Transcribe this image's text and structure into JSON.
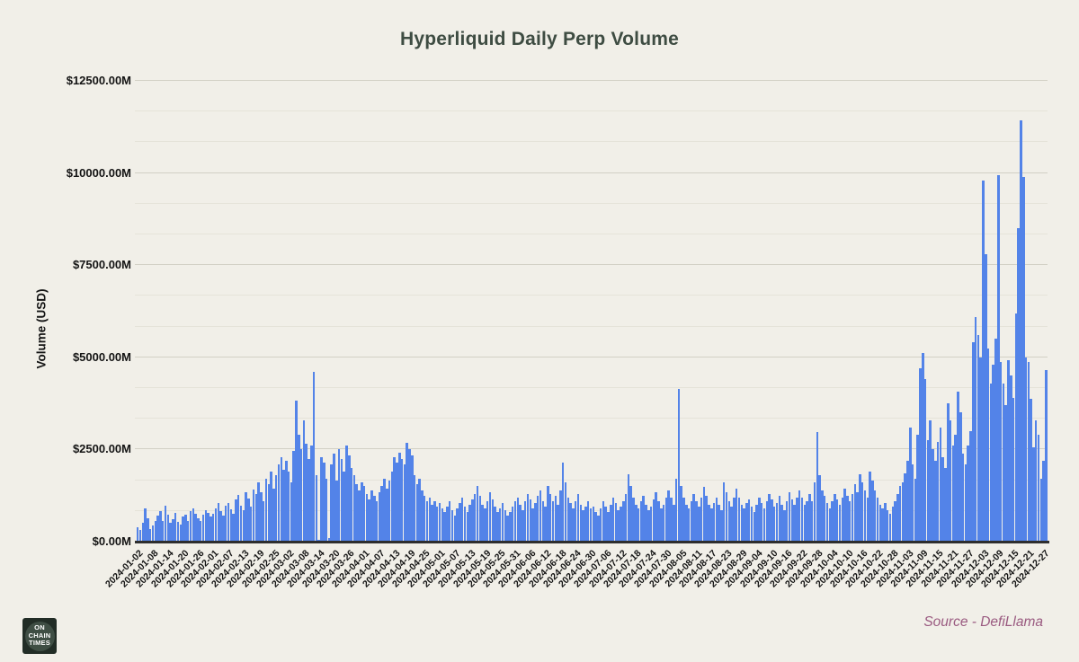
{
  "title": "Hyperliquid Daily Perp Volume",
  "y_axis": {
    "label": "Volume (USD)",
    "ticks": [
      {
        "value": 0,
        "label": "$0.00M"
      },
      {
        "value": 2500,
        "label": "$2500.00M"
      },
      {
        "value": 5000,
        "label": "$5000.00M"
      },
      {
        "value": 7500,
        "label": "$7500.00M"
      },
      {
        "value": 10000,
        "label": "$10000.00M"
      },
      {
        "value": 12500,
        "label": "$12500.00M"
      }
    ],
    "minor_divisions_per_major": 3
  },
  "x_axis": {
    "tick_every_n_bars": 6,
    "tick_labels": [
      "2024-01-02",
      "2024-01-08",
      "2024-01-14",
      "2024-01-20",
      "2024-01-26",
      "2024-02-01",
      "2024-02-07",
      "2024-02-13",
      "2024-02-19",
      "2024-02-25",
      "2024-03-02",
      "2024-03-08",
      "2024-03-14",
      "2024-03-20",
      "2024-03-26",
      "2024-04-01",
      "2024-04-07",
      "2024-04-13",
      "2024-04-19",
      "2024-04-25",
      "2024-05-01",
      "2024-05-07",
      "2024-05-13",
      "2024-05-19",
      "2024-05-25",
      "2024-05-31",
      "2024-06-06",
      "2024-06-12",
      "2024-06-18",
      "2024-06-24",
      "2024-06-30",
      "2024-07-06",
      "2024-07-12",
      "2024-07-18",
      "2024-07-24",
      "2024-07-30",
      "2024-08-05",
      "2024-08-11",
      "2024-08-17",
      "2024-08-23",
      "2024-08-29",
      "2024-09-04",
      "2024-09-10",
      "2024-09-16",
      "2024-09-22",
      "2024-09-28",
      "2024-10-04",
      "2024-10-10",
      "2024-10-16",
      "2024-10-22",
      "2024-10-28",
      "2024-11-03",
      "2024-11-09",
      "2024-11-15",
      "2024-11-21",
      "2024-11-27",
      "2024-12-03",
      "2024-12-09",
      "2024-12-15",
      "2024-12-21",
      "2024-12-27"
    ]
  },
  "source": "Source - DefiLlama",
  "logo": {
    "lines": [
      "ON",
      "CHAIN",
      "TIMES"
    ]
  },
  "colors": {
    "background": "#f1efe8",
    "bar": "#5383e8",
    "title_text": "#3e4c42",
    "axis_text": "#141414",
    "grid_major": "#d2d0c5",
    "grid_minor": "#e5e3d9",
    "baseline": "#2e2e2e",
    "source_text": "#9a5a80",
    "logo_bg": "#222d26",
    "logo_circle": "#3f4e44",
    "logo_text": "#ffffff"
  },
  "chart_data": {
    "type": "bar",
    "title": "Hyperliquid Daily Perp Volume",
    "xlabel": "",
    "ylabel": "Volume (USD)",
    "unit": "USD millions",
    "ylim": [
      0,
      12500
    ],
    "grid": true,
    "start_date": "2024-01-02",
    "end_date": "2024-12-28",
    "frequency": "daily",
    "notable_points": {
      "2024-03-12": 4600,
      "2024-08-04": 4150,
      "2024-09-28": 2980,
      "2024-11-09": 5120,
      "2024-12-03": 9800,
      "2024-12-09": 9950,
      "2024-12-18": 11430,
      "2024-12-19": 9900,
      "2024-12-28": 4650
    },
    "values": [
      380,
      320,
      520,
      900,
      640,
      350,
      430,
      560,
      700,
      820,
      560,
      970,
      740,
      520,
      620,
      780,
      540,
      460,
      680,
      740,
      560,
      820,
      900,
      760,
      640,
      560,
      720,
      860,
      780,
      680,
      760,
      900,
      1050,
      820,
      700,
      980,
      1060,
      870,
      760,
      1150,
      1270,
      980,
      850,
      1350,
      1180,
      960,
      1420,
      1280,
      1600,
      1350,
      1100,
      1700,
      1560,
      1900,
      1450,
      1800,
      2100,
      2300,
      1950,
      2200,
      1900,
      1600,
      2450,
      3830,
      2900,
      2500,
      3300,
      2650,
      2250,
      2600,
      4600,
      1800,
      60,
      2300,
      2150,
      1700,
      90,
      2100,
      2400,
      1650,
      2500,
      2250,
      1900,
      2600,
      2350,
      2000,
      1800,
      1550,
      1400,
      1600,
      1500,
      1300,
      1150,
      1400,
      1250,
      1100,
      1350,
      1500,
      1700,
      1450,
      1650,
      1900,
      2300,
      2150,
      2420,
      2250,
      2100,
      2690,
      2500,
      2330,
      1800,
      1550,
      1700,
      1400,
      1250,
      1100,
      1200,
      1000,
      1100,
      950,
      1050,
      900,
      800,
      950,
      1100,
      850,
      700,
      900,
      1050,
      1200,
      950,
      800,
      1000,
      1150,
      1300,
      1500,
      1250,
      1000,
      900,
      1100,
      1350,
      1150,
      950,
      800,
      900,
      1050,
      850,
      700,
      800,
      950,
      1100,
      1200,
      1000,
      850,
      1100,
      1300,
      1150,
      900,
      1050,
      1250,
      1400,
      1100,
      950,
      1500,
      1300,
      1100,
      1250,
      1000,
      1400,
      2150,
      1600,
      1200,
      1050,
      900,
      1100,
      1300,
      1000,
      850,
      950,
      1100,
      900,
      950,
      800,
      700,
      900,
      1100,
      950,
      800,
      1000,
      1200,
      1050,
      850,
      950,
      1100,
      1300,
      1840,
      1500,
      1200,
      1000,
      900,
      1100,
      1250,
      1000,
      850,
      950,
      1150,
      1350,
      1100,
      900,
      1000,
      1200,
      1400,
      1200,
      1000,
      1700,
      4150,
      1500,
      1200,
      1000,
      900,
      1100,
      1300,
      1100,
      950,
      1200,
      1480,
      1250,
      1000,
      900,
      1050,
      1200,
      1000,
      850,
      1600,
      1350,
      1100,
      950,
      1200,
      1450,
      1200,
      1000,
      900,
      1050,
      1150,
      950,
      800,
      1000,
      1200,
      1050,
      900,
      1100,
      1300,
      1150,
      950,
      1050,
      1250,
      1000,
      850,
      1100,
      1350,
      1150,
      1000,
      1200,
      1400,
      1200,
      1000,
      1100,
      1300,
      1100,
      1600,
      2980,
      1800,
      1400,
      1250,
      1050,
      900,
      1100,
      1300,
      1150,
      1000,
      1200,
      1450,
      1250,
      1100,
      1300,
      1550,
      1350,
      1840,
      1600,
      1400,
      1200,
      1900,
      1650,
      1400,
      1200,
      1000,
      900,
      1050,
      850,
      750,
      950,
      1100,
      1300,
      1500,
      1600,
      1850,
      2200,
      3100,
      2100,
      1700,
      2900,
      4700,
      5120,
      4400,
      2750,
      3300,
      2500,
      2200,
      2700,
      3100,
      2300,
      2000,
      3760,
      3300,
      2600,
      2900,
      4080,
      3500,
      2400,
      2100,
      2600,
      3000,
      5400,
      6100,
      5600,
      5000,
      9800,
      7800,
      5240,
      4300,
      4800,
      5500,
      9950,
      4880,
      4300,
      3700,
      4930,
      4500,
      3900,
      6200,
      8500,
      11430,
      9900,
      5000,
      4880,
      3880,
      2570,
      3300,
      2900,
      1700,
      2200,
      4650
    ]
  }
}
